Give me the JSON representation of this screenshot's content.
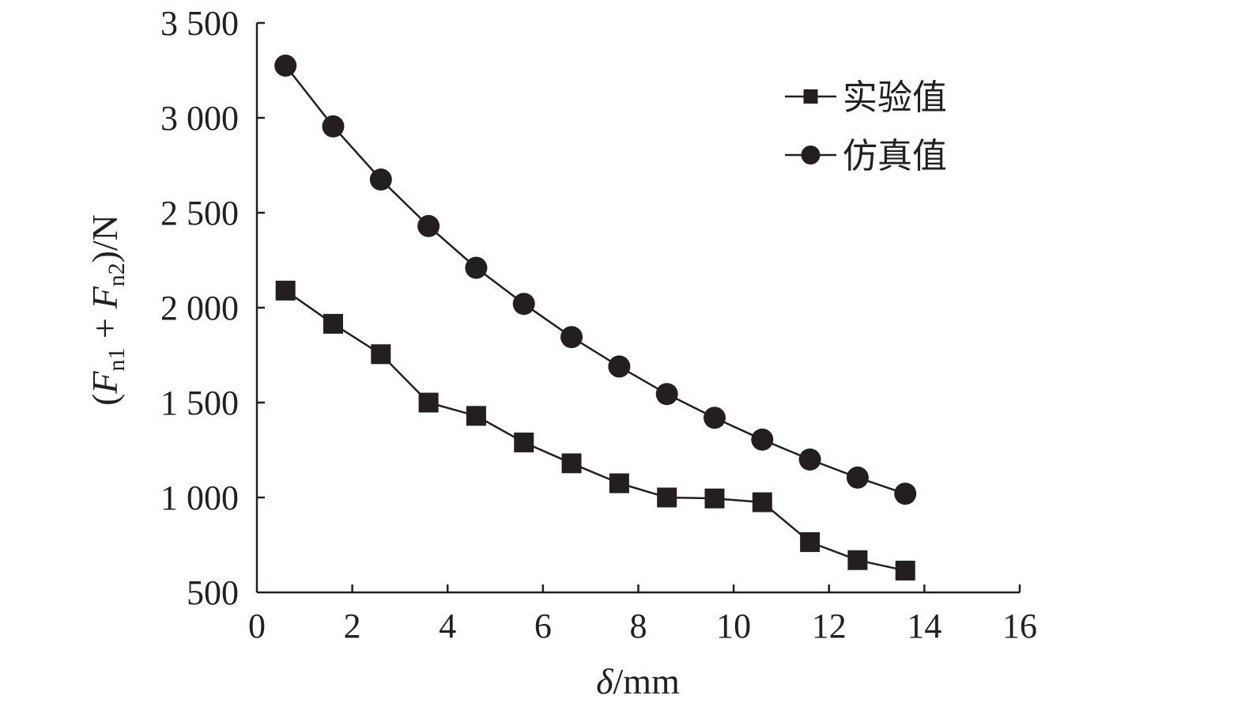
{
  "chart_data": {
    "type": "line",
    "title": "",
    "xlabel": {
      "symbol": "δ",
      "unit": "/mm"
    },
    "ylabel": {
      "open": "(",
      "term1_symbol": "F",
      "term1_subscript": "n1",
      "plus": " + ",
      "term2_symbol": "F",
      "term2_subscript": "n2",
      "close": ")/N"
    },
    "xlim": [
      0,
      16
    ],
    "ylim": [
      500,
      3500
    ],
    "x_ticks": [
      0,
      2,
      4,
      6,
      8,
      10,
      12,
      14,
      16
    ],
    "x_tick_labels": [
      "0",
      "2",
      "4",
      "6",
      "8",
      "10",
      "12",
      "14",
      "16"
    ],
    "y_ticks": [
      500,
      1000,
      1500,
      2000,
      2500,
      3000,
      3500
    ],
    "y_tick_labels": [
      "500",
      "1 000",
      "1 500",
      "2 000",
      "2 500",
      "3 000",
      "3 500"
    ],
    "grid": false,
    "legend_position": "top-right",
    "x": [
      0.6,
      1.6,
      2.6,
      3.6,
      4.6,
      5.6,
      6.6,
      7.6,
      8.6,
      9.6,
      10.6,
      11.6,
      12.6,
      13.6
    ],
    "series": [
      {
        "name": "实验值",
        "marker": "square",
        "color": "#231f20",
        "values": [
          2090,
          1915,
          1755,
          1500,
          1430,
          1290,
          1180,
          1075,
          1000,
          995,
          975,
          765,
          670,
          615
        ]
      },
      {
        "name": "仿真值",
        "marker": "circle",
        "color": "#231f20",
        "values": [
          3275,
          2955,
          2675,
          2430,
          2210,
          2020,
          1845,
          1690,
          1545,
          1420,
          1305,
          1200,
          1105,
          1020
        ]
      }
    ]
  }
}
